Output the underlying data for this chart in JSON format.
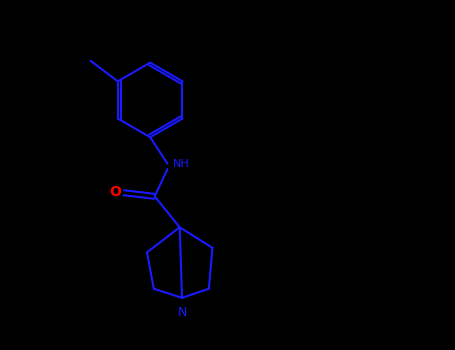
{
  "background_color": "#000000",
  "line_color": "#1a1aff",
  "o_color": "#ff0000",
  "n_color": "#1a1aff",
  "o_label": "O",
  "nh_label": "NH",
  "n_label": "N",
  "figsize": [
    4.55,
    3.5
  ],
  "dpi": 100,
  "lw": 1.5
}
